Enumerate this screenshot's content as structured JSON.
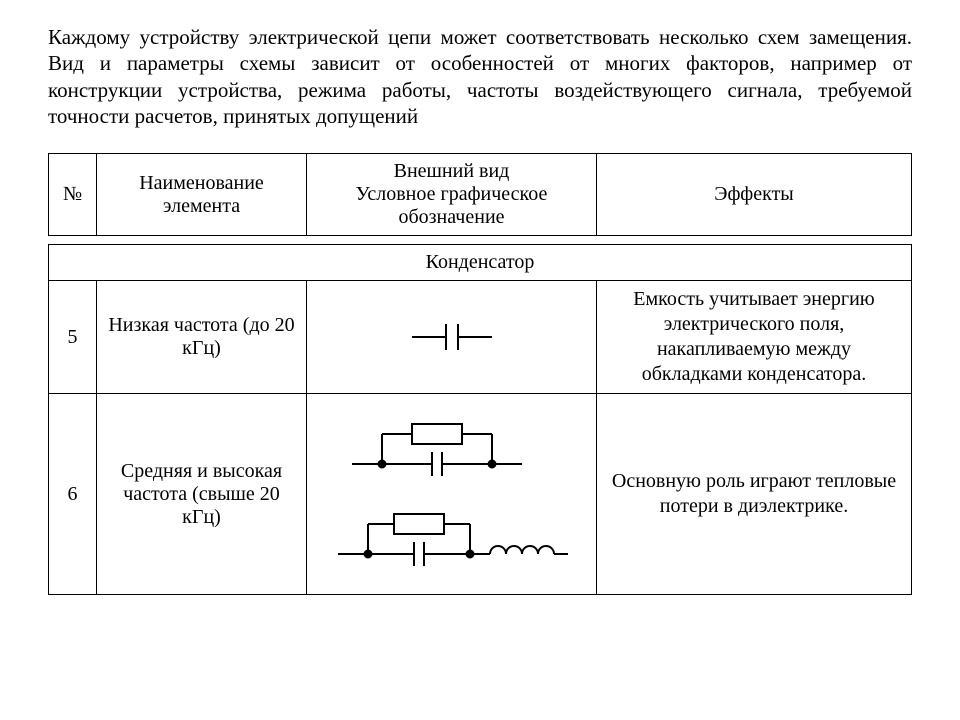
{
  "intro": "Каждому устройству электрической цепи может соответствовать несколько схем замещения. Вид и параметры схемы зависит от особенностей от многих факторов, например от конструкции устройства, режима работы, частоты воздействующего сигнала, требуемой точности расчетов, принятых допущений",
  "header": {
    "num": "№",
    "name": "Наименование элемента",
    "symbol": "Внешний вид\nУсловное графическое обозначение",
    "effects": "Эффекты"
  },
  "section": "Конденсатор",
  "rows": [
    {
      "num": "5",
      "name": "Низкая частота (до 20 кГц)",
      "effects": "Емкость учитывает энергию электрического поля, накапливаемую между обкладками конденсатора."
    },
    {
      "num": "6",
      "name": "Средняя и высокая частота (свыше 20 кГц)",
      "effects": "Основную роль играют тепловые потери в диэлектрике."
    }
  ],
  "style": {
    "stroke": "#000000",
    "stroke_width": 2,
    "node_radius": 3.2
  }
}
